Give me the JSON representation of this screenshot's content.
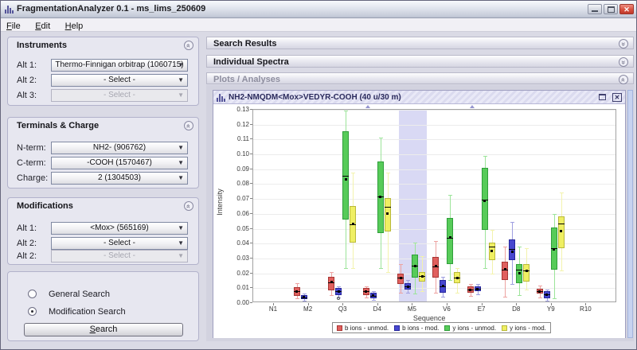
{
  "window": {
    "title": "FragmentationAnalyzer 0.1 - ms_lims_250609"
  },
  "menu": {
    "items": [
      {
        "label": "File"
      },
      {
        "label": "Edit"
      },
      {
        "label": "Help"
      }
    ]
  },
  "left_panels": {
    "instruments": {
      "title": "Instruments",
      "rows": [
        {
          "label": "Alt 1:",
          "value": "Thermo-Finnigan orbitrap (1060715)",
          "enabled": true
        },
        {
          "label": "Alt 2:",
          "value": "- Select -",
          "enabled": true
        },
        {
          "label": "Alt 3:",
          "value": "- Select -",
          "enabled": false
        }
      ]
    },
    "terminals": {
      "title": "Terminals & Charge",
      "rows": [
        {
          "label": "N-term:",
          "value": "NH2- (906762)",
          "enabled": true
        },
        {
          "label": "C-term:",
          "value": "-COOH (1570467)",
          "enabled": true
        },
        {
          "label": "Charge:",
          "value": "2 (1304503)",
          "enabled": true
        }
      ]
    },
    "modifications": {
      "title": "Modifications",
      "rows": [
        {
          "label": "Alt 1:",
          "value": "<Mox> (565169)",
          "enabled": true
        },
        {
          "label": "Alt 2:",
          "value": "- Select -",
          "enabled": true
        },
        {
          "label": "Alt 2:",
          "value": "- Select -",
          "enabled": false
        }
      ]
    },
    "search": {
      "radios": [
        {
          "label": "General Search",
          "selected": false
        },
        {
          "label": "Modification Search",
          "selected": true
        }
      ],
      "button_label": "Search"
    }
  },
  "right_panels": {
    "search_results": {
      "title": "Search Results",
      "collapsed": true
    },
    "individual_spectra": {
      "title": "Individual Spectra",
      "collapsed": true
    },
    "plots": {
      "title": "Plots / Analyses",
      "collapsed": false
    }
  },
  "plot_frame": {
    "title": "NH2-NMQDM<Mox>VEDYR-COOH (40 u/30 m)"
  },
  "chart_data": {
    "type": "boxplot",
    "xlabel": "Sequence",
    "ylabel": "Intensity",
    "ylim": [
      0.0,
      0.13
    ],
    "ytick_step": 0.01,
    "grid": "horizontal",
    "legend_position": "bottom",
    "categories": [
      "N1",
      "M2",
      "Q3",
      "D4",
      "M5",
      "V6",
      "E7",
      "D8",
      "Y9",
      "R10"
    ],
    "highlight_category": "M5",
    "top_markers": [
      "D4",
      "E7"
    ],
    "series": [
      {
        "name": "b ions - unmod.",
        "fill": "#e0605e",
        "edge": "#a83634",
        "whisker": "#eda3a1",
        "boxes": {
          "M2": {
            "low": 0.003,
            "q1": 0.005,
            "median": 0.008,
            "mean": 0.008,
            "q3": 0.0105,
            "high": 0.0135
          },
          "Q3": {
            "low": 0.0055,
            "q1": 0.0086,
            "median": 0.014,
            "mean": 0.014,
            "q3": 0.0177,
            "high": 0.021
          },
          "D4": {
            "low": 0.004,
            "q1": 0.0053,
            "median": 0.008,
            "mean": 0.008,
            "q3": 0.0104,
            "high": 0.0115
          },
          "M5": {
            "low": 0.0071,
            "q1": 0.0126,
            "median": 0.017,
            "mean": 0.017,
            "q3": 0.0198,
            "high": 0.0262
          },
          "V6": {
            "low": 0.0071,
            "q1": 0.0171,
            "median": 0.0248,
            "mean": 0.0248,
            "q3": 0.0308,
            "high": 0.0417
          },
          "E7": {
            "low": 0.005,
            "q1": 0.0071,
            "median": 0.009,
            "mean": 0.009,
            "q3": 0.0111,
            "high": 0.013
          },
          "D8": {
            "low": 0.0044,
            "q1": 0.0153,
            "median": 0.0226,
            "mean": 0.0226,
            "q3": 0.028,
            "high": 0.038
          },
          "Y9": {
            "low": 0.004,
            "q1": 0.0062,
            "median": 0.008,
            "mean": 0.008,
            "q3": 0.0098,
            "high": 0.012
          }
        }
      },
      {
        "name": "b ions - mod.",
        "fill": "#4747cf",
        "edge": "#26269c",
        "whisker": "#9f9fe0",
        "boxes": {
          "M2": {
            "low": 0.0016,
            "q1": 0.0027,
            "median": 0.004,
            "mean": 0.004,
            "q3": 0.0055,
            "high": 0.0066
          },
          "Q3": {
            "low": 0.004,
            "q1": 0.0053,
            "median": 0.008,
            "mean": 0.008,
            "q3": 0.0104,
            "high": 0.0115,
            "outliers": [
              0.003
            ]
          },
          "D4": {
            "low": 0.002,
            "q1": 0.0031,
            "median": 0.005,
            "mean": 0.005,
            "q3": 0.0071,
            "high": 0.008
          },
          "M5": {
            "low": 0.0071,
            "q1": 0.0089,
            "median": 0.011,
            "mean": 0.011,
            "q3": 0.0135,
            "high": 0.0153
          },
          "V6": {
            "low": 0.0044,
            "q1": 0.0071,
            "median": 0.0115,
            "mean": 0.0115,
            "q3": 0.0153,
            "high": 0.0175
          },
          "E7": {
            "low": 0.006,
            "q1": 0.008,
            "median": 0.0095,
            "mean": 0.0095,
            "q3": 0.0111,
            "high": 0.013
          },
          "D8": {
            "low": 0.0126,
            "q1": 0.029,
            "median": 0.0366,
            "mean": 0.0344,
            "q3": 0.0426,
            "high": 0.0548
          },
          "Y9": {
            "low": 0.0016,
            "q1": 0.0034,
            "median": 0.0057,
            "mean": 0.0057,
            "q3": 0.008,
            "high": 0.009
          }
        }
      },
      {
        "name": "y ions - unmod.",
        "fill": "#57cb59",
        "edge": "#2f9e3a",
        "whisker": "#9ce49a",
        "boxes": {
          "Q3": {
            "low": 0.0235,
            "q1": 0.0563,
            "median": 0.0858,
            "mean": 0.083,
            "q3": 0.1155,
            "high": 0.1295
          },
          "D4": {
            "low": 0.0235,
            "q1": 0.0471,
            "median": 0.0715,
            "mean": 0.0715,
            "q3": 0.0954,
            "high": 0.1113
          },
          "M5": {
            "low": 0.0062,
            "q1": 0.0171,
            "median": 0.025,
            "mean": 0.025,
            "q3": 0.0326,
            "high": 0.0408
          },
          "V6": {
            "low": 0.0153,
            "q1": 0.0262,
            "median": 0.044,
            "mean": 0.044,
            "q3": 0.0572,
            "high": 0.0727
          },
          "E7": {
            "low": 0.0235,
            "q1": 0.049,
            "median": 0.0694,
            "mean": 0.069,
            "q3": 0.0912,
            "high": 0.099
          },
          "D8": {
            "low": 0.0053,
            "q1": 0.0135,
            "median": 0.0226,
            "mean": 0.0198,
            "q3": 0.0262,
            "high": 0.0381
          },
          "Y9": {
            "low": 0.0034,
            "q1": 0.0226,
            "median": 0.0371,
            "mean": 0.0362,
            "q3": 0.0508,
            "high": 0.0599
          }
        }
      },
      {
        "name": "y ions - mod.",
        "fill": "#efef63",
        "edge": "#b9b93a",
        "whisker": "#f3f3ad",
        "boxes": {
          "Q3": {
            "low": 0.0235,
            "q1": 0.0408,
            "median": 0.053,
            "mean": 0.053,
            "q3": 0.0654,
            "high": 0.088
          },
          "D4": {
            "low": 0.0208,
            "q1": 0.0481,
            "median": 0.065,
            "mean": 0.06,
            "q3": 0.0708,
            "high": 0.088
          },
          "M5": {
            "low": 0.008,
            "q1": 0.0144,
            "median": 0.018,
            "mean": 0.018,
            "q3": 0.0208,
            "high": 0.0317
          },
          "V6": {
            "low": 0.0071,
            "q1": 0.0135,
            "median": 0.017,
            "mean": 0.017,
            "q3": 0.0208,
            "high": 0.0235
          },
          "E7": {
            "low": 0.0198,
            "q1": 0.029,
            "median": 0.0381,
            "mean": 0.0348,
            "q3": 0.0408,
            "high": 0.049
          },
          "D8": {
            "low": 0.0089,
            "q1": 0.0144,
            "median": 0.0217,
            "mean": 0.0217,
            "q3": 0.0262,
            "high": 0.0371
          },
          "Y9": {
            "low": 0.0217,
            "q1": 0.0371,
            "median": 0.0535,
            "mean": 0.0486,
            "q3": 0.0581,
            "high": 0.0745
          }
        }
      }
    ]
  }
}
